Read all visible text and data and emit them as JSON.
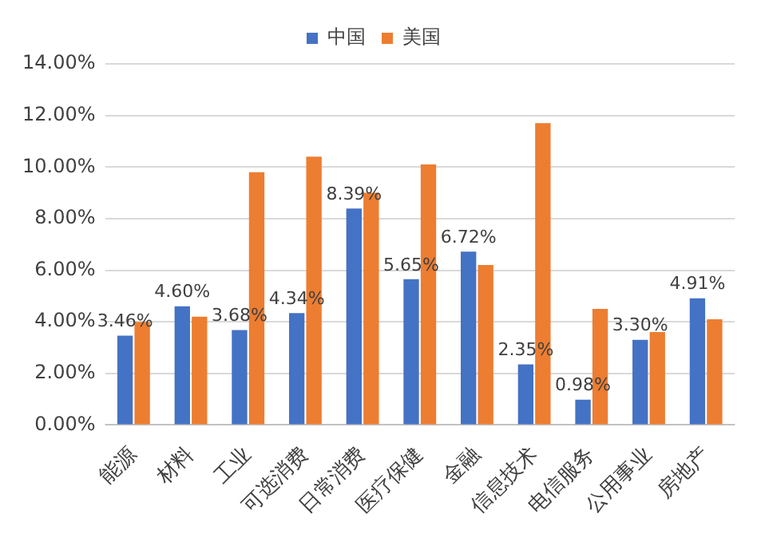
{
  "chart_data": {
    "type": "bar",
    "categories": [
      "能源",
      "材料",
      "工业",
      "可选消费",
      "日常消费",
      "医疗保健",
      "金融",
      "信息技术",
      "电信服务",
      "公用事业",
      "房地产"
    ],
    "series": [
      {
        "name": "中国",
        "color": "#4472c4",
        "values": [
          3.46,
          4.6,
          3.68,
          4.34,
          8.39,
          5.65,
          6.72,
          2.35,
          0.98,
          3.3,
          4.91
        ],
        "value_labels": [
          "3.46%",
          "4.60%",
          "3.68%",
          "4.34%",
          "8.39%",
          "5.65%",
          "6.72%",
          "2.35%",
          "0.98%",
          "3.30%",
          "4.91%"
        ]
      },
      {
        "name": "美国",
        "color": "#ed7d31",
        "values": [
          4.0,
          4.2,
          9.8,
          10.4,
          9.0,
          10.1,
          6.2,
          11.7,
          4.5,
          3.6,
          4.1
        ]
      }
    ],
    "ylim": [
      0,
      14
    ],
    "yticks": [
      {
        "value": 0,
        "label": "0.00%"
      },
      {
        "value": 2,
        "label": "2.00%"
      },
      {
        "value": 4,
        "label": "4.00%"
      },
      {
        "value": 6,
        "label": "6.00%"
      },
      {
        "value": 8,
        "label": "8.00%"
      },
      {
        "value": 10,
        "label": "10.00%"
      },
      {
        "value": 12,
        "label": "12.00%"
      },
      {
        "value": 14,
        "label": "14.00%"
      }
    ],
    "grid": "y",
    "legend": "top"
  }
}
